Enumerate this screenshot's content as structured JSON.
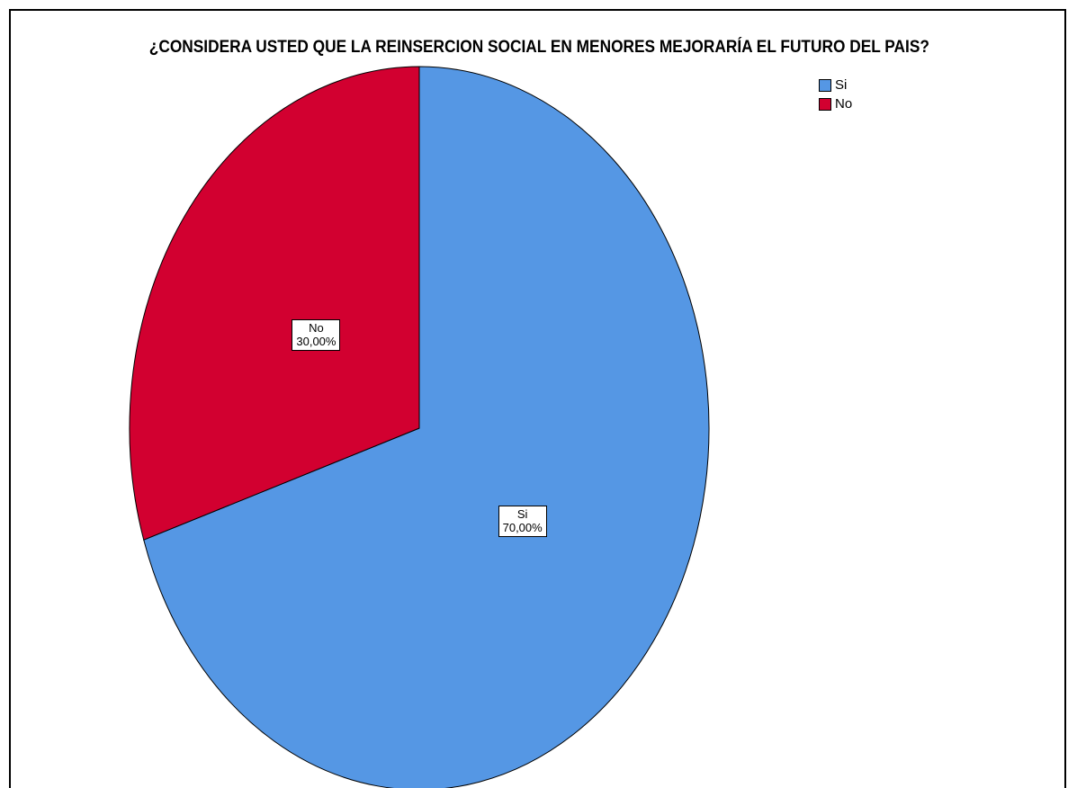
{
  "chart_data": {
    "type": "pie",
    "title": "¿CONSIDERA USTED QUE LA REINSERCION SOCIAL EN MENORES MEJORARÍA EL FUTURO DEL PAIS?",
    "legend_position": "top-right",
    "slices": [
      {
        "name": "Si",
        "value": 70,
        "label": "70,00%",
        "color": "#5597E4"
      },
      {
        "name": "No",
        "value": 30,
        "label": "30,00%",
        "color": "#D20030"
      }
    ],
    "start_angle_deg": 0,
    "direction": "clockwise"
  }
}
